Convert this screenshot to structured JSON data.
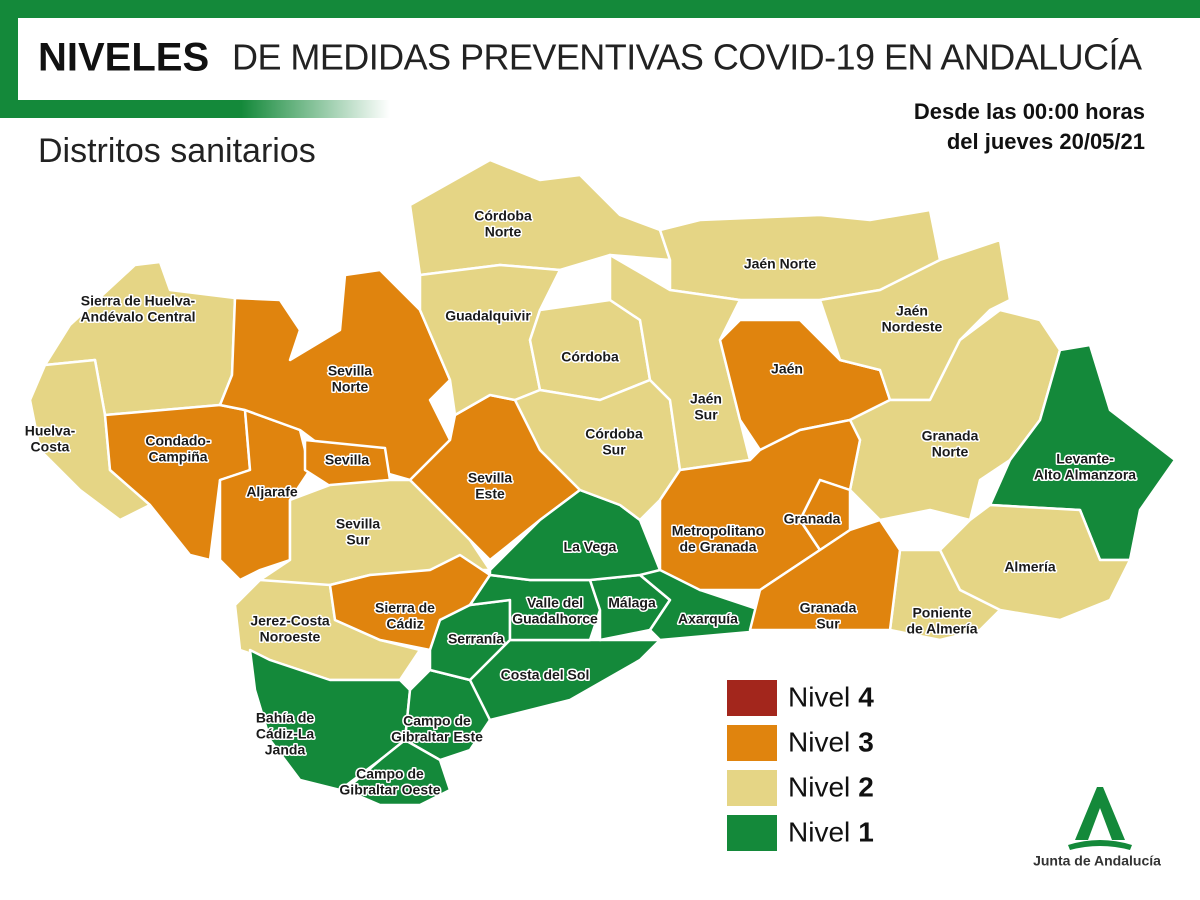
{
  "header": {
    "title_bold": "NIVELES",
    "title_rest": "DE MEDIDAS PREVENTIVAS COVID-19 EN ANDALUCÍA",
    "subtitle": "Distritos sanitarios",
    "date_line1": "Desde las 00:00 horas",
    "date_line2": "del jueves 20/05/21"
  },
  "legend": [
    {
      "label": "Nivel",
      "level": 4,
      "color": "#a3261c"
    },
    {
      "label": "Nivel",
      "level": 3,
      "color": "#e0840e"
    },
    {
      "label": "Nivel",
      "level": 2,
      "color": "#e5d585"
    },
    {
      "label": "Nivel",
      "level": 1,
      "color": "#14893a"
    }
  ],
  "districts": [
    {
      "lines": [
        "Sierra de Huelva-",
        "Andévalo Central"
      ],
      "level": 2
    },
    {
      "lines": [
        "Huelva-",
        "Costa"
      ],
      "level": 2
    },
    {
      "lines": [
        "Condado-",
        "Campiña"
      ],
      "level": 3
    },
    {
      "lines": [
        "Aljarafe"
      ],
      "level": 3
    },
    {
      "lines": [
        "Sevilla",
        "Norte"
      ],
      "level": 3
    },
    {
      "lines": [
        "Sevilla"
      ],
      "level": 3
    },
    {
      "lines": [
        "Sevilla",
        "Sur"
      ],
      "level": 2
    },
    {
      "lines": [
        "Sevilla",
        "Este"
      ],
      "level": 3
    },
    {
      "lines": [
        "Jerez-Costa",
        "Noroeste"
      ],
      "level": 2
    },
    {
      "lines": [
        "Sierra de",
        "Cádiz"
      ],
      "level": 3
    },
    {
      "lines": [
        "Bahía de",
        "Cádiz-La",
        "Janda"
      ],
      "level": 1
    },
    {
      "lines": [
        "Campo de",
        "Gibraltar Este"
      ],
      "level": 1
    },
    {
      "lines": [
        "Campo de",
        "Gibraltar Oeste"
      ],
      "level": 1
    },
    {
      "lines": [
        "Serranía"
      ],
      "level": 1
    },
    {
      "lines": [
        "Costa del Sol"
      ],
      "level": 1
    },
    {
      "lines": [
        "Valle del",
        "Guadalhorce"
      ],
      "level": 1
    },
    {
      "lines": [
        "Málaga"
      ],
      "level": 1
    },
    {
      "lines": [
        "Axarquía"
      ],
      "level": 1
    },
    {
      "lines": [
        "La Vega"
      ],
      "level": 1
    },
    {
      "lines": [
        "Córdoba",
        "Norte"
      ],
      "level": 2
    },
    {
      "lines": [
        "Guadalquivir"
      ],
      "level": 2
    },
    {
      "lines": [
        "Córdoba"
      ],
      "level": 2
    },
    {
      "lines": [
        "Córdoba",
        "Sur"
      ],
      "level": 2
    },
    {
      "lines": [
        "Jaén Norte"
      ],
      "level": 2
    },
    {
      "lines": [
        "Jaén",
        "Sur"
      ],
      "level": 2
    },
    {
      "lines": [
        "Jaén"
      ],
      "level": 3
    },
    {
      "lines": [
        "Jaén",
        "Nordeste"
      ],
      "level": 2
    },
    {
      "lines": [
        "Granada",
        "Norte"
      ],
      "level": 2
    },
    {
      "lines": [
        "Levante-",
        "Alto Almanzora"
      ],
      "level": 1
    },
    {
      "lines": [
        "Almería"
      ],
      "level": 2
    },
    {
      "lines": [
        "Poniente",
        "de Almería"
      ],
      "level": 2
    },
    {
      "lines": [
        "Metropolitano",
        "de Granada"
      ],
      "level": 3
    },
    {
      "lines": [
        "Granada"
      ],
      "level": 3
    },
    {
      "lines": [
        "Granada",
        "Sur"
      ],
      "level": 3
    }
  ],
  "logo": {
    "text": "Junta de Andalucía"
  }
}
